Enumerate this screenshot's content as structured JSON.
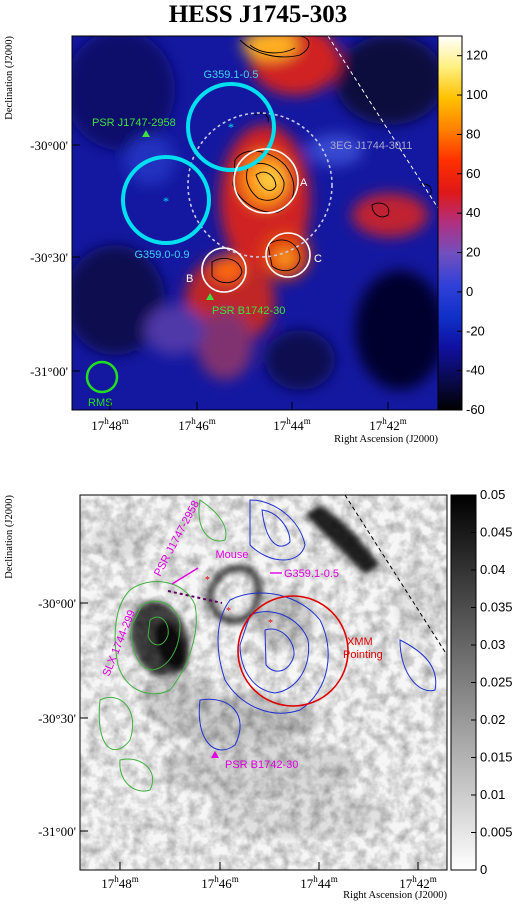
{
  "title": "HESS J1745-303",
  "chart_data": [
    {
      "type": "heatmap",
      "panel": "top",
      "description_colormap": "significance excess map (blue-red-yellow)",
      "colorbar": {
        "min": -60,
        "max": 130,
        "ticks": [
          120,
          100,
          80,
          60,
          40,
          20,
          0,
          -20,
          -40,
          -60
        ],
        "stops": [
          "#000000",
          "#0a0a50",
          "#1010a0",
          "#1030c8",
          "#3040d8",
          "#7050c0",
          "#b03080",
          "#e01818",
          "#ff3000",
          "#ff8000",
          "#ffc000",
          "#fff080",
          "#ffffff"
        ]
      },
      "xlabel": "Right Ascension (J2000)",
      "ylabel": "Declination (J2000)",
      "x_tick_labels": [
        "17h48m",
        "17h46m",
        "17h44m",
        "17h42m"
      ],
      "y_tick_labels": [
        "-30°00'",
        "-30°30'",
        "-31°00'"
      ],
      "sources": [
        {
          "name": "G359.1-0.5",
          "kind": "snr",
          "color": "#00e0f0"
        },
        {
          "name": "G359.0-0.9",
          "kind": "snr",
          "color": "#00e0f0"
        },
        {
          "name": "PSR J1747-2958",
          "kind": "pulsar",
          "color": "#40e040"
        },
        {
          "name": "PSR B1742-30",
          "kind": "pulsar",
          "color": "#40e040"
        },
        {
          "name": "3EG J1744-3011",
          "kind": "egret",
          "color": "#c8c8e8"
        },
        {
          "name": "RMS",
          "kind": "psf",
          "color": "#20e020"
        }
      ],
      "regions": [
        "A",
        "B",
        "C"
      ]
    },
    {
      "type": "heatmap",
      "panel": "bottom",
      "description_colormap": "greyscale radio map with contours",
      "colorbar": {
        "min": 0,
        "max": 0.05,
        "ticks": [
          0.05,
          0.045,
          0.04,
          0.035,
          0.03,
          0.025,
          0.02,
          0.015,
          0.01,
          0.005,
          0
        ]
      },
      "xlabel": "Right Ascension (J2000)",
      "ylabel": "Declination (J2000)",
      "x_tick_labels": [
        "17h48m",
        "17h46m",
        "17h44m",
        "17h42m"
      ],
      "y_tick_labels": [
        "-30°00'",
        "-30°30'",
        "-31°00'"
      ],
      "annotations": [
        {
          "text": "Mouse",
          "color": "#e000e0"
        },
        {
          "text": "PSR J1747-2958",
          "color": "#e000e0"
        },
        {
          "text": "SLX 1744-299",
          "color": "#e000e0"
        },
        {
          "text": "G359.1-0.5",
          "color": "#e000e0"
        },
        {
          "text": "XMM",
          "color": "#e00000"
        },
        {
          "text": "Pointing",
          "color": "#e00000"
        },
        {
          "text": "PSR B1742-30",
          "color": "#e000e0"
        }
      ]
    }
  ]
}
